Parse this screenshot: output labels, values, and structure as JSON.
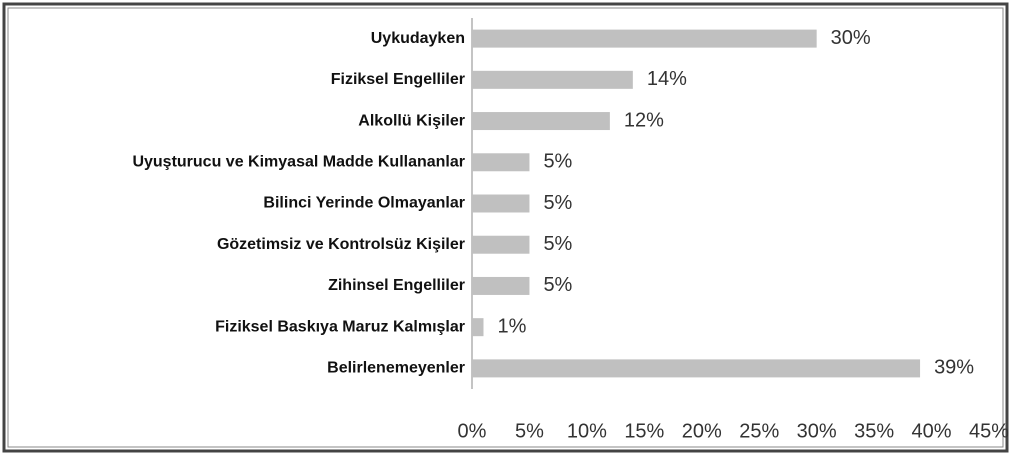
{
  "chart_data": {
    "type": "barh",
    "categories": [
      "Uykudayken",
      "Fiziksel Engelliler",
      "Alkollü Kişiler",
      "Uyuşturucu ve Kimyasal Madde Kullananlar",
      "Bilinci Yerinde Olmayanlar",
      "Gözetimsiz ve Kontrolsüz Kişiler",
      "Zihinsel Engelliler",
      "Fiziksel Baskıya Maruz Kalmışlar",
      "Belirlenemeyenler"
    ],
    "values": [
      30,
      14,
      12,
      5,
      5,
      5,
      5,
      1,
      39
    ],
    "value_labels": [
      "30%",
      "14%",
      "12%",
      "5%",
      "5%",
      "5%",
      "5%",
      "1%",
      "39%"
    ],
    "color": "#c0c0c0",
    "xlim": [
      0,
      45
    ],
    "xticks": [
      {
        "value": 0,
        "label": "0%"
      },
      {
        "value": 5,
        "label": "5%"
      },
      {
        "value": 10,
        "label": "10%"
      },
      {
        "value": 15,
        "label": "15%"
      },
      {
        "value": 20,
        "label": "20%"
      },
      {
        "value": 25,
        "label": "25%"
      },
      {
        "value": 30,
        "label": "30%"
      },
      {
        "value": 35,
        "label": "35%"
      },
      {
        "value": 40,
        "label": "40%"
      },
      {
        "value": 45,
        "label": "45%"
      }
    ]
  }
}
